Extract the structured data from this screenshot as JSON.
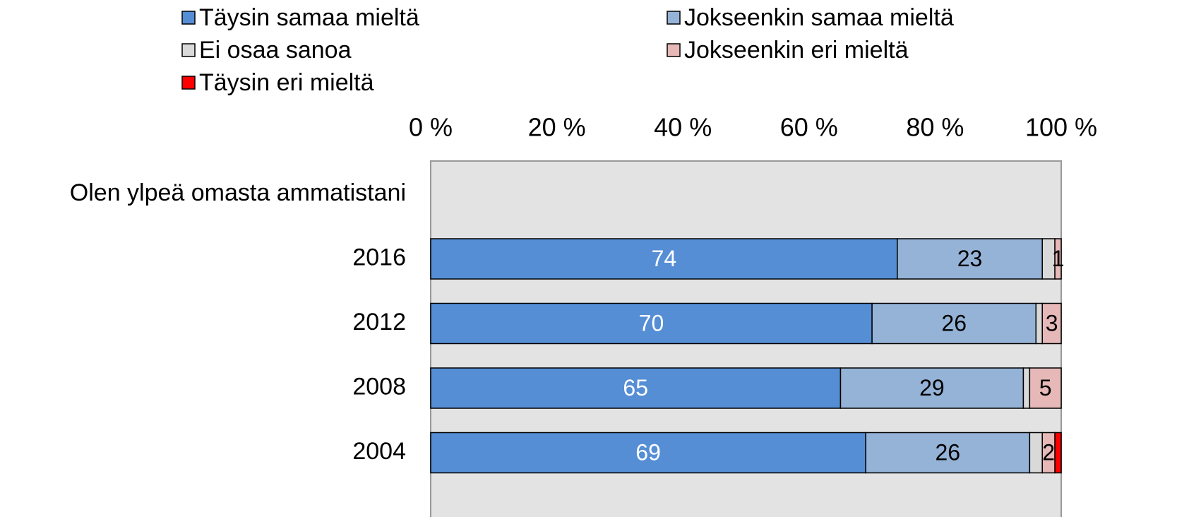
{
  "chart_data": {
    "type": "stacked-barh",
    "categories": [
      "Olen ylpeä omasta ammatistani",
      "2016",
      "2012",
      "2008",
      "2004"
    ],
    "series": [
      {
        "name": "Täysin samaa mieltä",
        "color": "#558ed5",
        "label_color": "#ffffff",
        "data_labels": true,
        "values": [
          null,
          74,
          70,
          65,
          69
        ]
      },
      {
        "name": "Jokseenkin samaa mieltä",
        "color": "#95b3d7",
        "label_color": "#000000",
        "data_labels": true,
        "values": [
          null,
          23,
          26,
          29,
          26
        ]
      },
      {
        "name": "Ei osaa sanoa",
        "color": "#d9d9d9",
        "label_color": "#000000",
        "data_labels": false,
        "values": [
          null,
          2,
          1,
          1,
          2
        ]
      },
      {
        "name": "Jokseenkin eri mieltä",
        "color": "#e6b9b8",
        "label_color": "#000000",
        "data_labels": true,
        "values": [
          null,
          1,
          3,
          5,
          2
        ]
      },
      {
        "name": "Täysin eri mieltä",
        "color": "#ff0000",
        "label_color": "#000000",
        "data_labels": false,
        "values": [
          null,
          0,
          0,
          0,
          1
        ]
      }
    ],
    "xlim": [
      0,
      100
    ],
    "xticks": [
      {
        "value": 0,
        "label": "0 %"
      },
      {
        "value": 20,
        "label": "20 %"
      },
      {
        "value": 40,
        "label": "40 %"
      },
      {
        "value": 60,
        "label": "60 %"
      },
      {
        "value": 80,
        "label": "80 %"
      },
      {
        "value": 100,
        "label": "100 %"
      }
    ],
    "legend": "top"
  }
}
